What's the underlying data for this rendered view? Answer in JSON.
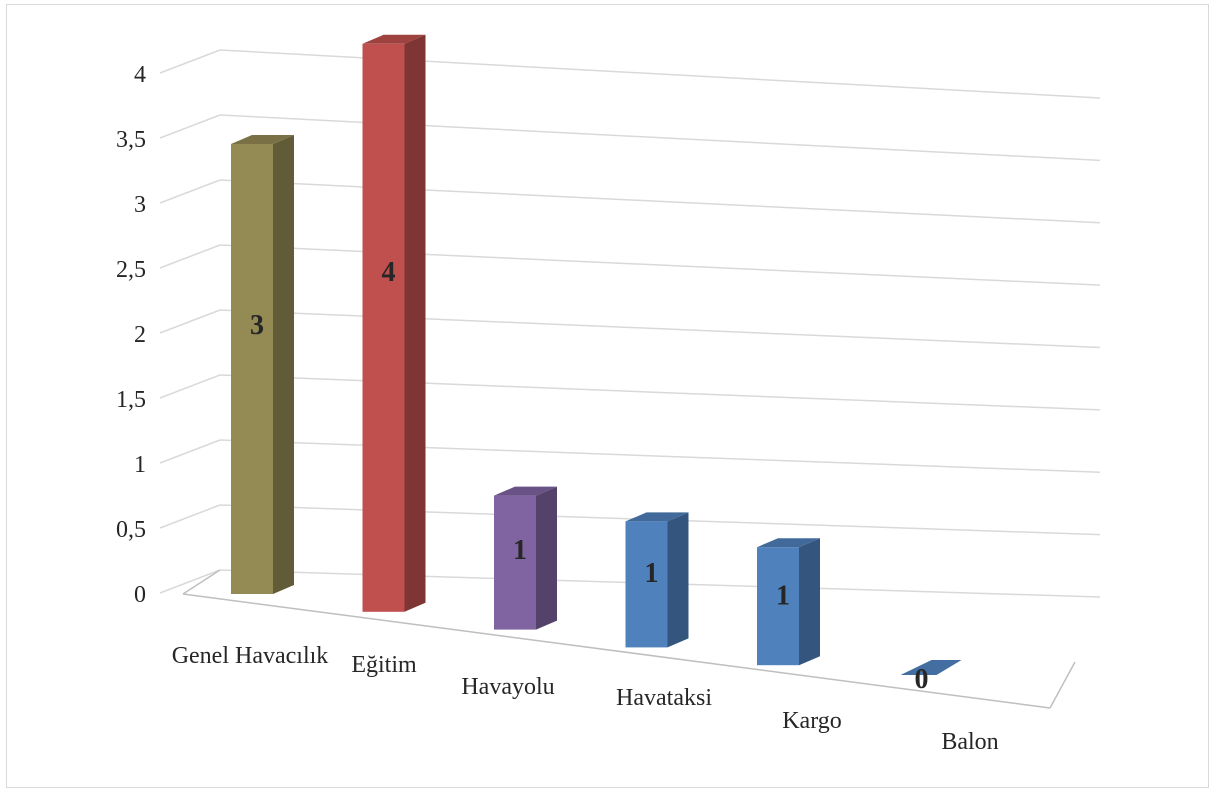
{
  "chart_data": {
    "type": "bar",
    "title": "",
    "xlabel": "",
    "ylabel": "",
    "ylim": [
      0,
      4
    ],
    "yticks": [
      "0",
      "0,5",
      "1",
      "1,5",
      "2",
      "2,5",
      "3",
      "3,5",
      "4"
    ],
    "categories": [
      "Genel Havacılık",
      "Eğitim",
      "Havayolu",
      "Havataksi",
      "Kargo",
      "Balon"
    ],
    "values": [
      3,
      4,
      1,
      1,
      1,
      0
    ],
    "data_labels": [
      "3",
      "4",
      "1",
      "1",
      "1",
      "0"
    ],
    "colors": [
      "#948a54",
      "#c0504d",
      "#8064a2",
      "#4f81bd",
      "#4f81bd",
      "#4f81bd"
    ],
    "grid": true,
    "legend": "none",
    "style": "3d-column"
  }
}
